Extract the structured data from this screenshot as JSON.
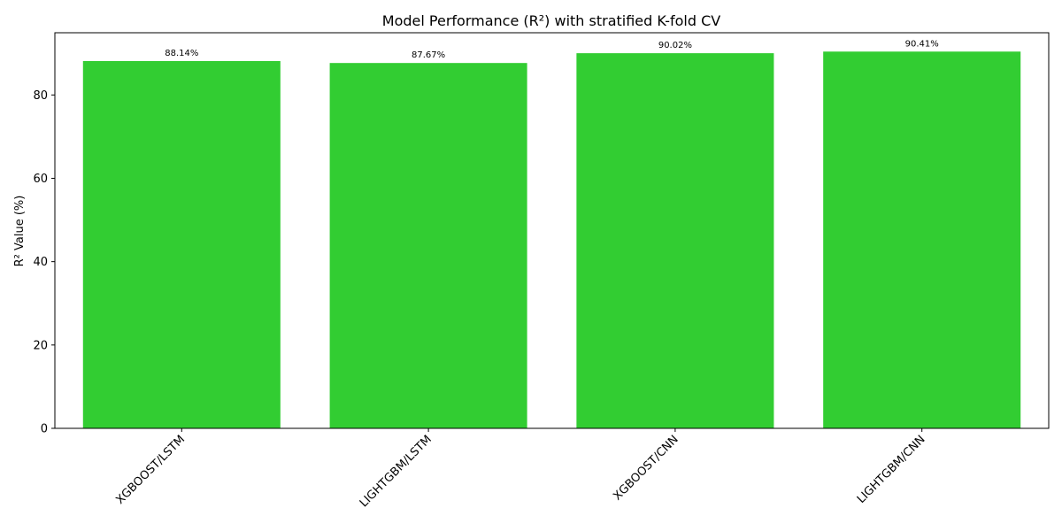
{
  "chart_data": {
    "type": "bar",
    "title": "Model Performance (R²) with stratified K-fold CV",
    "xlabel": "",
    "ylabel": "R² Value (%)",
    "categories": [
      "XGBOOST/LSTM",
      "LIGHTGBM/LSTM",
      "XGBOOST/CNN",
      "LIGHTGBM/CNN"
    ],
    "values": [
      88.14,
      87.67,
      90.02,
      90.41
    ],
    "data_labels": [
      "88.14%",
      "87.67%",
      "90.02%",
      "90.41%"
    ],
    "ylim": [
      0,
      94.93
    ],
    "yticks": [
      0,
      20,
      40,
      60,
      80
    ],
    "ytick_labels": [
      "0",
      "20",
      "40",
      "60",
      "80"
    ],
    "grid": false,
    "bar_color": "#32cd32",
    "xtick_rotation": "45"
  }
}
